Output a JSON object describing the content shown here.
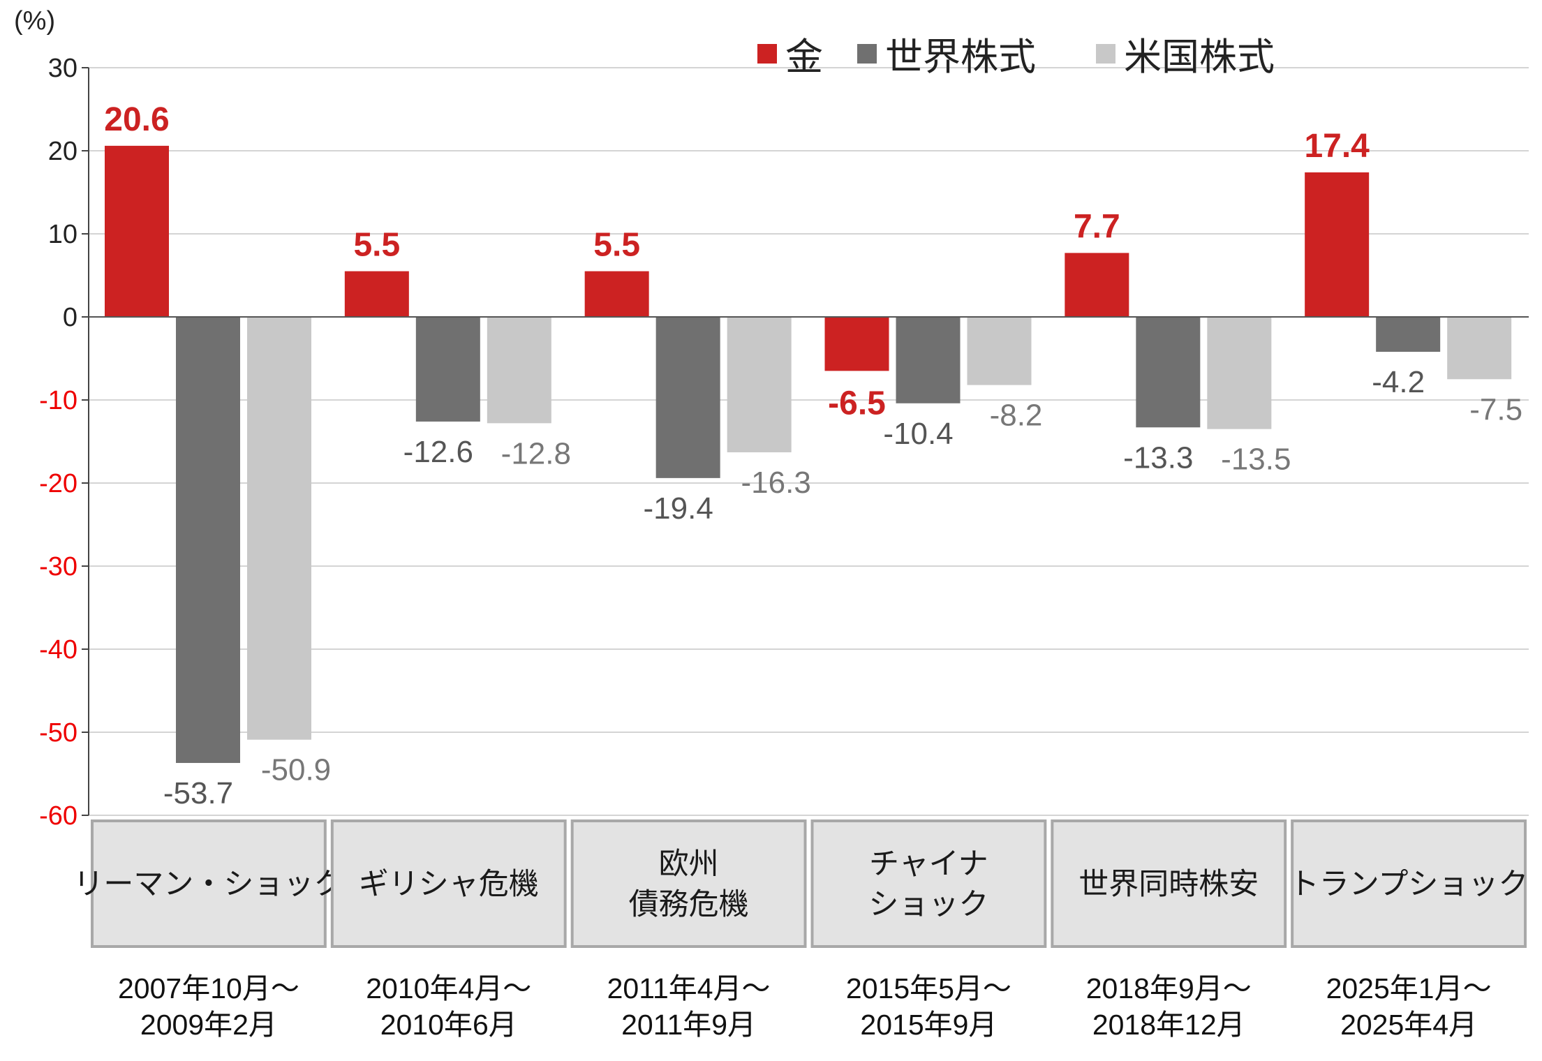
{
  "chart_data": {
    "type": "bar",
    "unit_label": "(%)",
    "ylim": [
      -60,
      30
    ],
    "yticks": [
      30,
      20,
      10,
      0,
      -10,
      -20,
      -30,
      -40,
      -50,
      -60
    ],
    "grid": true,
    "legend_position": "top-right",
    "categories": [
      {
        "name": [
          "リーマン・ショック"
        ],
        "period": [
          "2007年10月～",
          "2009年2月"
        ]
      },
      {
        "name": [
          "ギリシャ危機"
        ],
        "period": [
          "2010年4月～",
          "2010年6月"
        ]
      },
      {
        "name": [
          "欧州",
          "債務危機"
        ],
        "period": [
          "2011年4月～",
          "2011年9月"
        ]
      },
      {
        "name": [
          "チャイナ",
          "ショック"
        ],
        "period": [
          "2015年5月～",
          "2015年9月"
        ]
      },
      {
        "name": [
          "世界同時株安"
        ],
        "period": [
          "2018年9月～",
          "2018年12月"
        ]
      },
      {
        "name": [
          "トランプショック"
        ],
        "period": [
          "2025年1月～",
          "2025年4月"
        ]
      }
    ],
    "series": [
      {
        "name": "金",
        "color": "#cc2222",
        "label_color": "#cc2222",
        "values": [
          20.6,
          5.5,
          5.5,
          -6.5,
          7.7,
          17.4
        ]
      },
      {
        "name": "世界株式",
        "color": "#707070",
        "label_color": "#555555",
        "values": [
          -53.7,
          -12.6,
          -19.4,
          -10.4,
          -13.3,
          -4.2
        ]
      },
      {
        "name": "米国株式",
        "color": "#c8c8c8",
        "label_color": "#777777",
        "values": [
          -50.9,
          -12.8,
          -16.3,
          -8.2,
          -13.5,
          -7.5
        ]
      }
    ],
    "colors": {
      "positive_tick": "#222222",
      "negative_tick": "#ee0000",
      "grid": "#d4d4d4",
      "category_box": "#e3e3e3",
      "category_border": "#a8a8a8"
    }
  }
}
